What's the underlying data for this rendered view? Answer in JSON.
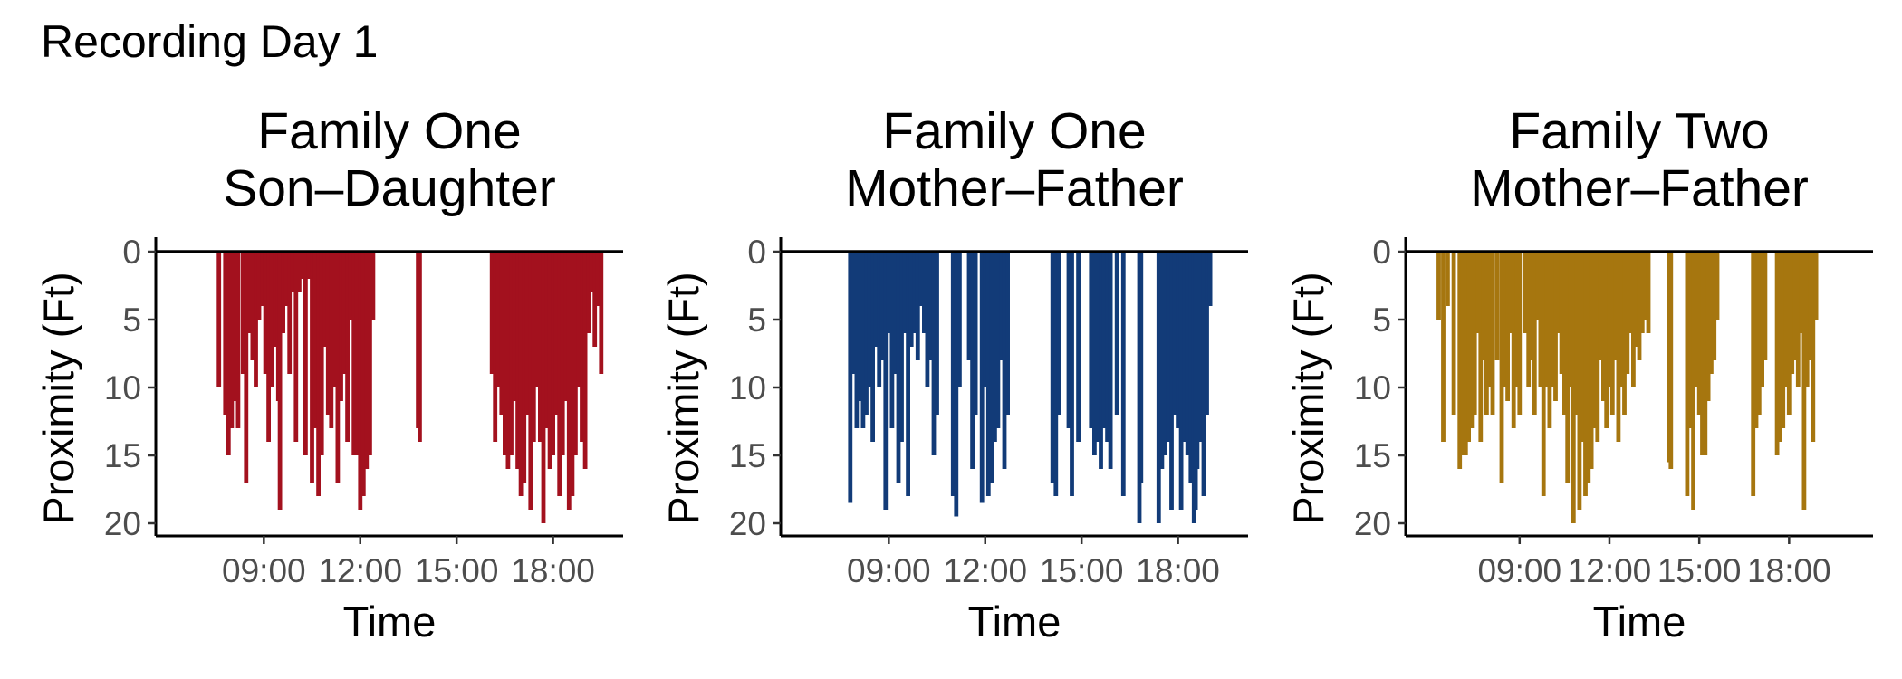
{
  "figure": {
    "title": "Recording Day 1"
  },
  "chart_data": [
    {
      "type": "bar",
      "title_lines": [
        "Family One",
        "Son–Daughter"
      ],
      "xlabel": "Time",
      "ylabel": "Proximity (Ft)",
      "x_ticks": [
        "09:00",
        "12:00",
        "15:00",
        "18:00"
      ],
      "y_ticks": [
        "0",
        "5",
        "10",
        "15",
        "20"
      ],
      "x_tick_hours": [
        9,
        12,
        15,
        18
      ],
      "xlim_hours": [
        6.2,
        19.9
      ],
      "ylim": [
        0,
        20.8
      ],
      "y_reversed": true,
      "color": "#A3111E",
      "bars": [
        [
          7.6,
          10
        ],
        [
          7.8,
          12
        ],
        [
          7.9,
          15
        ],
        [
          8.0,
          13
        ],
        [
          8.1,
          11
        ],
        [
          8.2,
          13
        ],
        [
          8.35,
          9
        ],
        [
          8.45,
          17
        ],
        [
          8.55,
          6
        ],
        [
          8.65,
          8
        ],
        [
          8.75,
          10
        ],
        [
          8.85,
          5
        ],
        [
          8.95,
          4
        ],
        [
          9.05,
          9
        ],
        [
          9.15,
          14
        ],
        [
          9.25,
          10
        ],
        [
          9.35,
          7
        ],
        [
          9.45,
          11
        ],
        [
          9.5,
          19
        ],
        [
          9.6,
          6
        ],
        [
          9.7,
          4
        ],
        [
          9.8,
          9
        ],
        [
          9.9,
          3
        ],
        [
          10.0,
          14
        ],
        [
          10.1,
          3
        ],
        [
          10.2,
          2
        ],
        [
          10.3,
          15
        ],
        [
          10.4,
          2
        ],
        [
          10.5,
          17
        ],
        [
          10.6,
          13
        ],
        [
          10.7,
          18
        ],
        [
          10.8,
          15
        ],
        [
          10.9,
          7
        ],
        [
          11.0,
          12
        ],
        [
          11.1,
          13
        ],
        [
          11.2,
          10
        ],
        [
          11.3,
          17
        ],
        [
          11.4,
          11
        ],
        [
          11.5,
          9
        ],
        [
          11.6,
          14
        ],
        [
          11.7,
          5
        ],
        [
          11.8,
          15
        ],
        [
          11.9,
          15
        ],
        [
          12.0,
          19
        ],
        [
          12.1,
          18
        ],
        [
          12.2,
          16
        ],
        [
          12.3,
          15
        ],
        [
          12.4,
          5
        ],
        [
          13.8,
          13
        ],
        [
          13.85,
          14
        ],
        [
          16.1,
          9
        ],
        [
          16.2,
          14
        ],
        [
          16.3,
          10
        ],
        [
          16.4,
          12
        ],
        [
          16.5,
          15
        ],
        [
          16.6,
          16
        ],
        [
          16.7,
          15
        ],
        [
          16.8,
          11
        ],
        [
          16.9,
          16
        ],
        [
          17.0,
          18
        ],
        [
          17.1,
          17
        ],
        [
          17.2,
          12
        ],
        [
          17.3,
          19
        ],
        [
          17.4,
          14
        ],
        [
          17.5,
          10
        ],
        [
          17.6,
          14
        ],
        [
          17.7,
          20
        ],
        [
          17.8,
          13
        ],
        [
          17.9,
          16
        ],
        [
          18.0,
          15
        ],
        [
          18.1,
          12
        ],
        [
          18.2,
          18
        ],
        [
          18.3,
          15
        ],
        [
          18.4,
          11
        ],
        [
          18.5,
          19
        ],
        [
          18.6,
          18
        ],
        [
          18.7,
          15
        ],
        [
          18.8,
          10
        ],
        [
          18.9,
          14
        ],
        [
          19.0,
          16
        ],
        [
          19.1,
          6
        ],
        [
          19.2,
          3
        ],
        [
          19.3,
          7
        ],
        [
          19.4,
          4
        ],
        [
          19.5,
          9
        ]
      ]
    },
    {
      "type": "bar",
      "title_lines": [
        "Family One",
        "Mother–Father"
      ],
      "xlabel": "Time",
      "ylabel": "Proximity (Ft)",
      "x_ticks": [
        "09:00",
        "12:00",
        "15:00",
        "18:00"
      ],
      "y_ticks": [
        "0",
        "5",
        "10",
        "15",
        "20"
      ],
      "x_tick_hours": [
        9,
        12,
        15,
        18
      ],
      "xlim_hours": [
        6.2,
        19.9
      ],
      "ylim": [
        0,
        20.8
      ],
      "y_reversed": true,
      "color": "#123B78",
      "bars": [
        [
          7.8,
          18.5
        ],
        [
          7.9,
          9
        ],
        [
          8.0,
          13
        ],
        [
          8.1,
          11
        ],
        [
          8.2,
          13
        ],
        [
          8.3,
          12
        ],
        [
          8.4,
          10
        ],
        [
          8.5,
          14
        ],
        [
          8.6,
          7
        ],
        [
          8.7,
          10
        ],
        [
          8.8,
          8
        ],
        [
          8.9,
          19
        ],
        [
          9.0,
          6
        ],
        [
          9.1,
          13
        ],
        [
          9.2,
          9
        ],
        [
          9.3,
          17
        ],
        [
          9.4,
          14
        ],
        [
          9.5,
          6
        ],
        [
          9.6,
          18
        ],
        [
          9.7,
          7
        ],
        [
          9.8,
          6
        ],
        [
          9.9,
          8
        ],
        [
          10.0,
          4
        ],
        [
          10.1,
          6
        ],
        [
          10.2,
          10
        ],
        [
          10.3,
          8
        ],
        [
          10.4,
          15
        ],
        [
          10.5,
          12
        ],
        [
          11.0,
          18
        ],
        [
          11.1,
          19.5
        ],
        [
          11.2,
          10
        ],
        [
          11.5,
          8
        ],
        [
          11.6,
          16
        ],
        [
          11.7,
          12
        ],
        [
          11.9,
          18.5
        ],
        [
          12.0,
          10
        ],
        [
          12.1,
          18
        ],
        [
          12.2,
          17
        ],
        [
          12.3,
          14
        ],
        [
          12.4,
          13
        ],
        [
          12.5,
          8
        ],
        [
          12.6,
          16
        ],
        [
          12.7,
          12
        ],
        [
          14.1,
          17
        ],
        [
          14.2,
          18
        ],
        [
          14.3,
          12
        ],
        [
          14.6,
          13
        ],
        [
          14.7,
          18
        ],
        [
          14.9,
          14
        ],
        [
          15.3,
          13
        ],
        [
          15.4,
          15
        ],
        [
          15.5,
          14
        ],
        [
          15.6,
          16
        ],
        [
          15.7,
          13
        ],
        [
          15.8,
          14
        ],
        [
          15.9,
          16
        ],
        [
          16.1,
          12
        ],
        [
          16.3,
          18
        ],
        [
          16.8,
          20
        ],
        [
          16.85,
          17
        ],
        [
          17.4,
          20
        ],
        [
          17.5,
          16
        ],
        [
          17.6,
          15
        ],
        [
          17.7,
          14
        ],
        [
          17.8,
          19
        ],
        [
          17.9,
          12
        ],
        [
          18.0,
          13
        ],
        [
          18.1,
          19
        ],
        [
          18.2,
          14
        ],
        [
          18.3,
          15
        ],
        [
          18.4,
          17
        ],
        [
          18.5,
          20
        ],
        [
          18.55,
          19
        ],
        [
          18.6,
          16
        ],
        [
          18.7,
          14
        ],
        [
          18.8,
          18
        ],
        [
          18.9,
          12
        ],
        [
          19.0,
          4
        ]
      ]
    },
    {
      "type": "bar",
      "title_lines": [
        "Family Two",
        "Mother–Father"
      ],
      "xlabel": "Time",
      "ylabel": "Proximity (Ft)",
      "x_ticks": [
        "09:00",
        "12:00",
        "15:00",
        "18:00"
      ],
      "y_ticks": [
        "0",
        "5",
        "10",
        "15",
        "20"
      ],
      "x_tick_hours": [
        9,
        12,
        15,
        18
      ],
      "xlim_hours": [
        5.8,
        20.5
      ],
      "ylim": [
        0,
        20.8
      ],
      "y_reversed": true,
      "color": "#A6760F",
      "bars": [
        [
          6.3,
          5
        ],
        [
          6.45,
          14
        ],
        [
          6.6,
          4
        ],
        [
          6.8,
          12
        ],
        [
          7.0,
          16
        ],
        [
          7.1,
          15
        ],
        [
          7.2,
          15
        ],
        [
          7.3,
          14
        ],
        [
          7.4,
          13
        ],
        [
          7.5,
          12
        ],
        [
          7.6,
          6
        ],
        [
          7.7,
          14
        ],
        [
          7.8,
          8
        ],
        [
          7.9,
          12
        ],
        [
          8.0,
          10
        ],
        [
          8.1,
          12
        ],
        [
          8.25,
          8
        ],
        [
          8.4,
          17
        ],
        [
          8.5,
          10
        ],
        [
          8.6,
          11
        ],
        [
          8.7,
          6
        ],
        [
          8.8,
          13
        ],
        [
          8.9,
          10
        ],
        [
          9.0,
          12
        ],
        [
          9.2,
          6
        ],
        [
          9.3,
          10
        ],
        [
          9.4,
          8
        ],
        [
          9.5,
          12
        ],
        [
          9.6,
          5
        ],
        [
          9.7,
          10
        ],
        [
          9.8,
          18
        ],
        [
          9.9,
          10
        ],
        [
          10.0,
          13
        ],
        [
          10.1,
          10
        ],
        [
          10.2,
          11
        ],
        [
          10.3,
          6
        ],
        [
          10.4,
          9
        ],
        [
          10.5,
          12
        ],
        [
          10.6,
          17
        ],
        [
          10.7,
          10
        ],
        [
          10.8,
          20
        ],
        [
          10.9,
          12
        ],
        [
          11.0,
          19
        ],
        [
          11.1,
          14
        ],
        [
          11.2,
          18
        ],
        [
          11.3,
          17
        ],
        [
          11.4,
          16
        ],
        [
          11.5,
          13
        ],
        [
          11.6,
          14
        ],
        [
          11.7,
          8
        ],
        [
          11.8,
          11
        ],
        [
          11.9,
          13
        ],
        [
          12.0,
          10
        ],
        [
          12.1,
          12
        ],
        [
          12.2,
          8
        ],
        [
          12.3,
          14
        ],
        [
          12.4,
          10
        ],
        [
          12.5,
          12
        ],
        [
          12.6,
          9
        ],
        [
          12.7,
          6
        ],
        [
          12.8,
          10
        ],
        [
          12.9,
          7
        ],
        [
          13.0,
          8
        ],
        [
          13.1,
          6
        ],
        [
          13.2,
          5
        ],
        [
          13.3,
          6
        ],
        [
          14.0,
          15.5
        ],
        [
          14.05,
          16
        ],
        [
          14.6,
          18
        ],
        [
          14.7,
          13
        ],
        [
          14.8,
          19
        ],
        [
          14.9,
          10
        ],
        [
          15.0,
          12
        ],
        [
          15.1,
          15
        ],
        [
          15.2,
          15
        ],
        [
          15.3,
          11
        ],
        [
          15.4,
          9
        ],
        [
          15.5,
          8
        ],
        [
          15.6,
          5
        ],
        [
          16.8,
          18
        ],
        [
          16.9,
          13
        ],
        [
          17.0,
          12
        ],
        [
          17.1,
          10
        ],
        [
          17.2,
          8
        ],
        [
          17.6,
          15
        ],
        [
          17.7,
          14
        ],
        [
          17.8,
          13
        ],
        [
          17.9,
          10
        ],
        [
          18.0,
          12
        ],
        [
          18.1,
          9
        ],
        [
          18.2,
          8
        ],
        [
          18.3,
          10
        ],
        [
          18.4,
          6
        ],
        [
          18.5,
          19
        ],
        [
          18.6,
          10
        ],
        [
          18.7,
          8
        ],
        [
          18.8,
          14
        ],
        [
          18.9,
          5
        ]
      ]
    }
  ]
}
